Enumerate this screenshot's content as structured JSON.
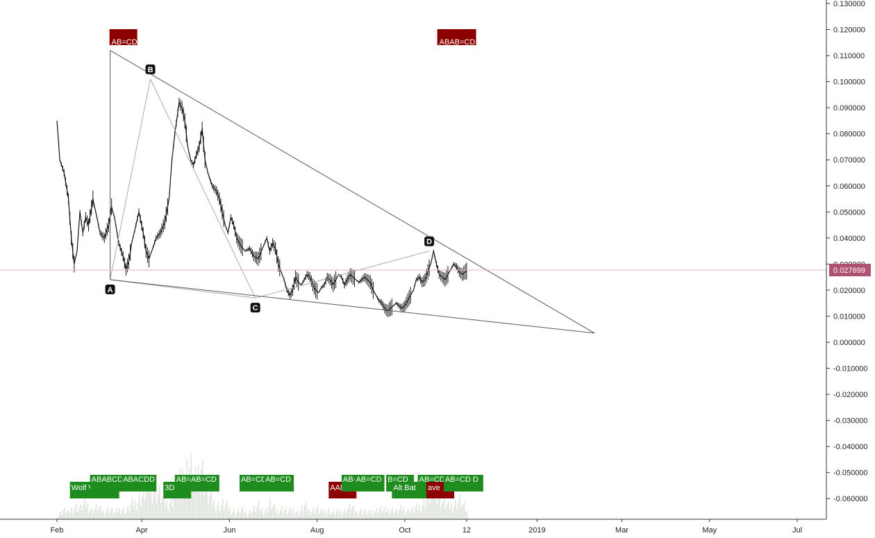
{
  "chart_data": {
    "type": "candlestick",
    "y_axis": {
      "range": [
        -0.065,
        0.13
      ],
      "ticks": [
        "0.130000",
        "0.120000",
        "0.110000",
        "0.100000",
        "0.090000",
        "0.080000",
        "0.070000",
        "0.060000",
        "0.050000",
        "0.040000",
        "0.030000",
        "0.020000",
        "0.010000",
        "0.000000",
        "-0.010000",
        "-0.020000",
        "-0.030000",
        "-0.040000",
        "-0.050000",
        "-0.060000"
      ],
      "tick_values": [
        0.13,
        0.12,
        0.11,
        0.1,
        0.09,
        0.08,
        0.07,
        0.06,
        0.05,
        0.04,
        0.03,
        0.02,
        0.01,
        0.0,
        -0.01,
        -0.02,
        -0.03,
        -0.04,
        -0.05,
        -0.06
      ]
    },
    "x_axis": {
      "labels": [
        "Feb",
        "Apr",
        "Jun",
        "Aug",
        "Oct",
        "12",
        "2019",
        "Mar",
        "May",
        "Jul"
      ],
      "label_days": [
        31,
        90,
        151,
        212,
        273,
        316,
        365,
        424,
        485,
        546
      ]
    },
    "current_price": {
      "label": "0.027699",
      "value": 0.027699,
      "color": "#b05072"
    },
    "price_path": [
      [
        0,
        0.085
      ],
      [
        2,
        0.07
      ],
      [
        5,
        0.065
      ],
      [
        8,
        0.055
      ],
      [
        10,
        0.04
      ],
      [
        12,
        0.03
      ],
      [
        14,
        0.035
      ],
      [
        16,
        0.05
      ],
      [
        18,
        0.042
      ],
      [
        20,
        0.048
      ],
      [
        22,
        0.045
      ],
      [
        25,
        0.055
      ],
      [
        27,
        0.05
      ],
      [
        30,
        0.042
      ],
      [
        33,
        0.04
      ],
      [
        36,
        0.045
      ],
      [
        38,
        0.052
      ],
      [
        40,
        0.048
      ],
      [
        43,
        0.038
      ],
      [
        46,
        0.033
      ],
      [
        48,
        0.028
      ],
      [
        50,
        0.031
      ],
      [
        52,
        0.038
      ],
      [
        55,
        0.045
      ],
      [
        57,
        0.05
      ],
      [
        60,
        0.042
      ],
      [
        62,
        0.035
      ],
      [
        64,
        0.032
      ],
      [
        66,
        0.035
      ],
      [
        69,
        0.04
      ],
      [
        72,
        0.042
      ],
      [
        75,
        0.046
      ],
      [
        78,
        0.055
      ],
      [
        80,
        0.07
      ],
      [
        82,
        0.08
      ],
      [
        85,
        0.092
      ],
      [
        87,
        0.09
      ],
      [
        89,
        0.085
      ],
      [
        91,
        0.075
      ],
      [
        93,
        0.07
      ],
      [
        95,
        0.068
      ],
      [
        97,
        0.072
      ],
      [
        99,
        0.075
      ],
      [
        101,
        0.082
      ],
      [
        103,
        0.07
      ],
      [
        105,
        0.065
      ],
      [
        108,
        0.06
      ],
      [
        111,
        0.058
      ],
      [
        113,
        0.055
      ],
      [
        115,
        0.05
      ],
      [
        117,
        0.045
      ],
      [
        119,
        0.042
      ],
      [
        121,
        0.048
      ],
      [
        123,
        0.045
      ],
      [
        125,
        0.04
      ],
      [
        128,
        0.037
      ],
      [
        131,
        0.035
      ],
      [
        134,
        0.036
      ],
      [
        137,
        0.033
      ],
      [
        140,
        0.032
      ],
      [
        143,
        0.036
      ],
      [
        146,
        0.04
      ],
      [
        148,
        0.035
      ],
      [
        150,
        0.038
      ],
      [
        152,
        0.036
      ],
      [
        154,
        0.03
      ],
      [
        156,
        0.027
      ],
      [
        158,
        0.024
      ],
      [
        160,
        0.02
      ],
      [
        162,
        0.018
      ],
      [
        164,
        0.02
      ],
      [
        166,
        0.025
      ],
      [
        168,
        0.023
      ],
      [
        170,
        0.022
      ],
      [
        172,
        0.024
      ],
      [
        174,
        0.026
      ],
      [
        176,
        0.025
      ],
      [
        178,
        0.022
      ],
      [
        180,
        0.02
      ],
      [
        182,
        0.019
      ],
      [
        184,
        0.021
      ],
      [
        186,
        0.022
      ],
      [
        188,
        0.025
      ],
      [
        190,
        0.024
      ],
      [
        192,
        0.022
      ],
      [
        194,
        0.024
      ],
      [
        196,
        0.026
      ],
      [
        198,
        0.025
      ],
      [
        200,
        0.022
      ],
      [
        202,
        0.024
      ],
      [
        204,
        0.026
      ],
      [
        206,
        0.025
      ],
      [
        208,
        0.024
      ],
      [
        210,
        0.023
      ],
      [
        212,
        0.024
      ],
      [
        214,
        0.025
      ],
      [
        216,
        0.024
      ],
      [
        218,
        0.023
      ],
      [
        220,
        0.02
      ],
      [
        222,
        0.018
      ],
      [
        224,
        0.016
      ],
      [
        226,
        0.015
      ],
      [
        228,
        0.013
      ],
      [
        230,
        0.012
      ],
      [
        232,
        0.013
      ],
      [
        234,
        0.014
      ],
      [
        236,
        0.015
      ],
      [
        238,
        0.014
      ],
      [
        240,
        0.013
      ],
      [
        242,
        0.014
      ],
      [
        244,
        0.016
      ],
      [
        246,
        0.018
      ],
      [
        248,
        0.02
      ],
      [
        250,
        0.024
      ],
      [
        252,
        0.025
      ],
      [
        254,
        0.023
      ],
      [
        256,
        0.024
      ],
      [
        258,
        0.027
      ],
      [
        260,
        0.03
      ],
      [
        262,
        0.035
      ],
      [
        264,
        0.03
      ],
      [
        266,
        0.026
      ],
      [
        268,
        0.025
      ],
      [
        270,
        0.024
      ],
      [
        272,
        0.026
      ],
      [
        274,
        0.028
      ],
      [
        276,
        0.03
      ],
      [
        278,
        0.029
      ],
      [
        280,
        0.027
      ],
      [
        282,
        0.026
      ],
      [
        284,
        0.027
      ],
      [
        286,
        0.027699
      ]
    ],
    "volume": [
      [
        0,
        5
      ],
      [
        4,
        15
      ],
      [
        8,
        10
      ],
      [
        12,
        22
      ],
      [
        16,
        18
      ],
      [
        20,
        26
      ],
      [
        24,
        14
      ],
      [
        28,
        20
      ],
      [
        32,
        12
      ],
      [
        36,
        16
      ],
      [
        40,
        11
      ],
      [
        44,
        17
      ],
      [
        48,
        13
      ],
      [
        52,
        25
      ],
      [
        56,
        30
      ],
      [
        60,
        40
      ],
      [
        64,
        55
      ],
      [
        68,
        48
      ],
      [
        72,
        38
      ],
      [
        76,
        26
      ],
      [
        80,
        34
      ],
      [
        84,
        52
      ],
      [
        88,
        75
      ],
      [
        92,
        85
      ],
      [
        96,
        60
      ],
      [
        100,
        92
      ],
      [
        104,
        40
      ],
      [
        108,
        30
      ],
      [
        112,
        22
      ],
      [
        116,
        25
      ],
      [
        120,
        16
      ],
      [
        124,
        12
      ],
      [
        128,
        15
      ],
      [
        132,
        10
      ],
      [
        136,
        15
      ],
      [
        140,
        20
      ],
      [
        144,
        12
      ],
      [
        148,
        25
      ],
      [
        152,
        14
      ],
      [
        156,
        18
      ],
      [
        160,
        12
      ],
      [
        164,
        15
      ],
      [
        168,
        10
      ],
      [
        172,
        22
      ],
      [
        176,
        13
      ],
      [
        180,
        18
      ],
      [
        184,
        12
      ],
      [
        188,
        16
      ],
      [
        192,
        10
      ],
      [
        196,
        14
      ],
      [
        200,
        13
      ],
      [
        204,
        20
      ],
      [
        208,
        12
      ],
      [
        212,
        15
      ],
      [
        216,
        10
      ],
      [
        220,
        13
      ],
      [
        224,
        18
      ],
      [
        228,
        14
      ],
      [
        232,
        16
      ],
      [
        236,
        12
      ],
      [
        240,
        18
      ],
      [
        244,
        14
      ],
      [
        248,
        16
      ],
      [
        252,
        20
      ],
      [
        256,
        30
      ],
      [
        260,
        38
      ],
      [
        264,
        50
      ],
      [
        268,
        28
      ],
      [
        272,
        20
      ],
      [
        276,
        25
      ],
      [
        280,
        30
      ],
      [
        284,
        15
      ],
      [
        286,
        10
      ]
    ],
    "pattern_lines": [
      {
        "name": "harmonic-a-b",
        "from": [
          37,
          0.024
        ],
        "to": [
          65,
          0.101
        ]
      },
      {
        "name": "harmonic-b-c",
        "from": [
          65,
          0.101
        ],
        "to": [
          138,
          0.017
        ]
      },
      {
        "name": "harmonic-c-d",
        "from": [
          138,
          0.017
        ],
        "to": [
          259,
          0.035
        ]
      },
      {
        "name": "harmonic-a-c-base",
        "from": [
          37,
          0.024
        ],
        "to": [
          138,
          0.017
        ]
      },
      {
        "name": "wedge-upper",
        "from": [
          37,
          0.112
        ],
        "to": [
          374,
          0.0035
        ]
      },
      {
        "name": "wedge-lower",
        "from": [
          37,
          0.024
        ],
        "to": [
          374,
          0.0035
        ]
      },
      {
        "name": "ab-cd-vertical",
        "from": [
          37,
          0.112
        ],
        "to": [
          37,
          0.024
        ]
      }
    ],
    "points": [
      {
        "label": "A",
        "day": 37,
        "value": 0.024,
        "offset": "below"
      },
      {
        "label": "B",
        "day": 65,
        "value": 0.101,
        "offset": "above"
      },
      {
        "label": "C",
        "day": 138,
        "value": 0.017,
        "offset": "below"
      },
      {
        "label": "D",
        "day": 259,
        "value": 0.035,
        "offset": "above"
      }
    ],
    "top_labels": [
      {
        "text": "AB=CD",
        "day": 38,
        "color": "#8b0000"
      },
      {
        "text": "ABAB=CD",
        "day": 266,
        "color": "#8b0000"
      }
    ],
    "bottom_labels": [
      {
        "text": "Wolf Wave",
        "day": 10,
        "color": "#1e8c1e",
        "row": 2
      },
      {
        "text": "ABABCD",
        "day": 24,
        "color": "#1e8c1e",
        "row": 1
      },
      {
        "text": "ABACDD",
        "day": 46,
        "color": "#1e8c1e",
        "row": 1
      },
      {
        "text": "3D",
        "day": 75,
        "color": "#1e8c1e",
        "row": 2
      },
      {
        "text": "AB=AB=CD",
        "day": 83,
        "color": "#1e8c1e",
        "row": 1
      },
      {
        "text": "AB=CD",
        "day": 128,
        "color": "#1e8c1e",
        "row": 1
      },
      {
        "text": "AB=CD",
        "day": 145,
        "color": "#1e8c1e",
        "row": 1
      },
      {
        "text": "AAlt",
        "day": 190,
        "color": "#8b0000",
        "row": 2
      },
      {
        "text": "AB=CD",
        "day": 199,
        "color": "#1e8c1e",
        "row": 1
      },
      {
        "text": "AB=CD",
        "day": 208,
        "color": "#1e8c1e",
        "row": 1
      },
      {
        "text": "B=CD",
        "day": 230,
        "color": "#1e8c1e",
        "row": 1
      },
      {
        "text": "Alt Bat",
        "day": 234,
        "color": "#1e8c1e",
        "row": 2
      },
      {
        "text": "AB=CD",
        "day": 252,
        "color": "#1e8c1e",
        "row": 1
      },
      {
        "text": "ave",
        "day": 258,
        "color": "#8b0000",
        "row": 2
      },
      {
        "text": "AB=CD D",
        "day": 270,
        "color": "#1e8c1e",
        "row": 1
      }
    ]
  }
}
